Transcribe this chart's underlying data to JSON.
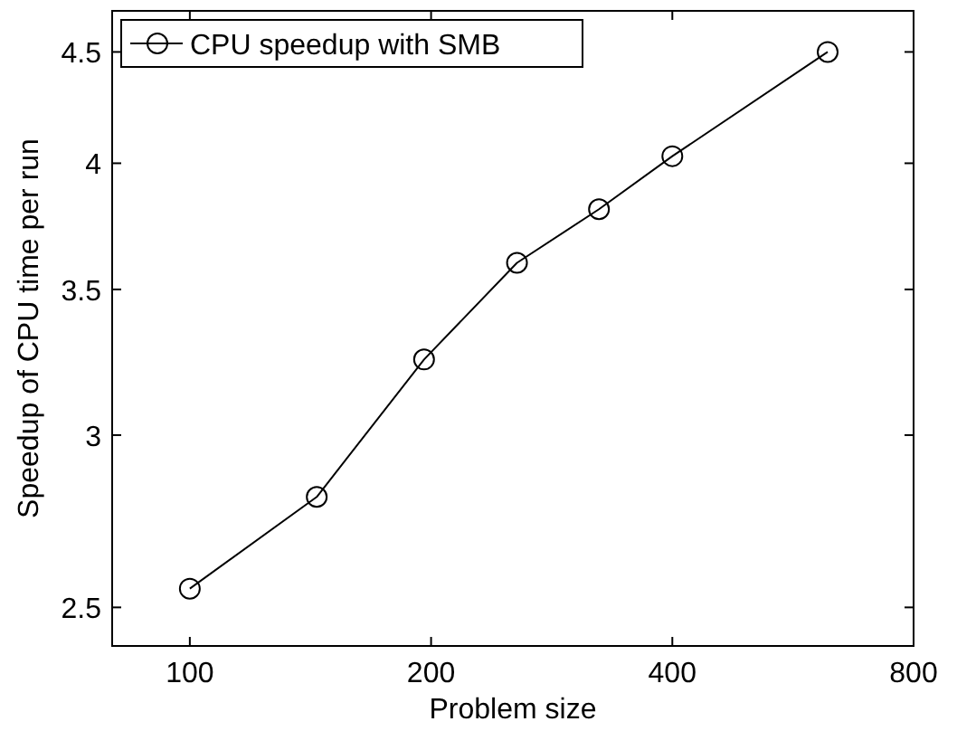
{
  "chart_data": {
    "type": "line",
    "xlabel": "Problem size",
    "ylabel": "Speedup of CPU time per run",
    "x": [
      100,
      144,
      196,
      256,
      324,
      400,
      625
    ],
    "series": [
      {
        "name": "CPU speedup with SMB",
        "color": "#000000",
        "values": [
          2.55,
          2.81,
          3.25,
          3.6,
          3.81,
          4.03,
          4.5
        ]
      }
    ],
    "xlim": [
      80,
      800
    ],
    "xticks": [
      100,
      200,
      400,
      800
    ],
    "ylim": [
      2.4,
      4.7
    ],
    "yticks": [
      2.5,
      3,
      3.5,
      4,
      4.5
    ],
    "log": "xy",
    "grid": false,
    "legend": "top left",
    "marker": "circle",
    "line_style": "solid"
  }
}
